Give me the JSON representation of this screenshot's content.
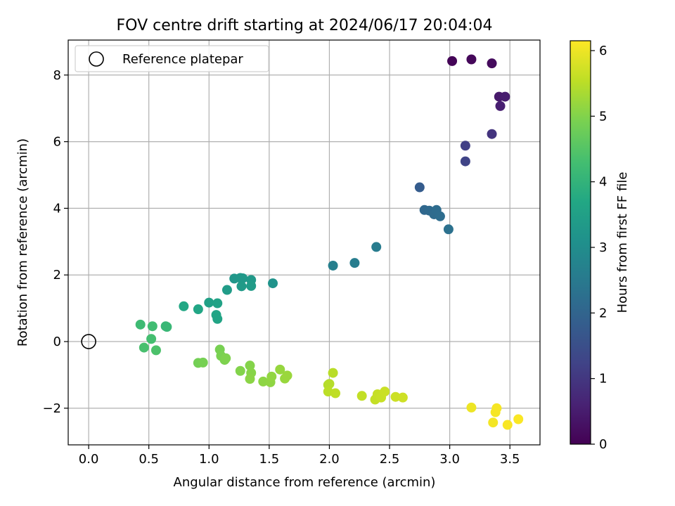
{
  "chart_data": {
    "type": "scatter",
    "title": "FOV centre drift starting at 2024/06/17 20:04:04",
    "xlabel": "Angular distance from reference (arcmin)",
    "ylabel": "Rotation from reference (arcmin)",
    "xlim": [
      -0.17,
      3.75
    ],
    "ylim": [
      -3.1,
      9.05
    ],
    "xticks": [
      0.0,
      0.5,
      1.0,
      1.5,
      2.0,
      2.5,
      3.0,
      3.5
    ],
    "xtick_labels": [
      "0.0",
      "0.5",
      "1.0",
      "1.5",
      "2.0",
      "2.5",
      "3.0",
      "3.5"
    ],
    "yticks": [
      -2,
      0,
      2,
      4,
      6,
      8
    ],
    "ytick_labels": [
      "−2",
      "0",
      "2",
      "4",
      "6",
      "8"
    ],
    "grid": true,
    "legend": {
      "placement": "upper-left",
      "entries": [
        {
          "label": "Reference platepar",
          "marker": "open-circle"
        }
      ]
    },
    "reference_point": {
      "x": 0.0,
      "y": 0.0
    },
    "colorbar": {
      "label": "Hours from first FF file",
      "colormap": "viridis",
      "range": [
        0,
        6.15
      ],
      "ticks": [
        0,
        1,
        2,
        3,
        4,
        5,
        6
      ],
      "tick_labels": [
        "0",
        "1",
        "2",
        "3",
        "4",
        "5",
        "6"
      ]
    },
    "points": [
      {
        "x": 3.02,
        "y": 8.42,
        "c": 0.05
      },
      {
        "x": 3.18,
        "y": 8.47,
        "c": 0.12
      },
      {
        "x": 3.35,
        "y": 8.35,
        "c": 0.18
      },
      {
        "x": 3.41,
        "y": 7.35,
        "c": 0.45
      },
      {
        "x": 3.46,
        "y": 7.35,
        "c": 0.5
      },
      {
        "x": 3.42,
        "y": 7.07,
        "c": 0.55
      },
      {
        "x": 3.35,
        "y": 6.23,
        "c": 0.95
      },
      {
        "x": 3.13,
        "y": 5.88,
        "c": 1.15
      },
      {
        "x": 3.13,
        "y": 5.41,
        "c": 1.25
      },
      {
        "x": 2.75,
        "y": 4.63,
        "c": 1.8
      },
      {
        "x": 2.79,
        "y": 3.95,
        "c": 2.05
      },
      {
        "x": 2.83,
        "y": 3.93,
        "c": 2.1
      },
      {
        "x": 2.87,
        "y": 3.82,
        "c": 2.15
      },
      {
        "x": 2.89,
        "y": 3.95,
        "c": 2.18
      },
      {
        "x": 2.92,
        "y": 3.76,
        "c": 2.2
      },
      {
        "x": 2.99,
        "y": 3.37,
        "c": 2.3
      },
      {
        "x": 2.39,
        "y": 2.84,
        "c": 2.55
      },
      {
        "x": 2.21,
        "y": 2.36,
        "c": 2.6
      },
      {
        "x": 2.03,
        "y": 2.28,
        "c": 2.65
      },
      {
        "x": 1.53,
        "y": 1.75,
        "c": 3.15
      },
      {
        "x": 1.21,
        "y": 1.89,
        "c": 3.25
      },
      {
        "x": 1.26,
        "y": 1.91,
        "c": 3.28
      },
      {
        "x": 1.28,
        "y": 1.9,
        "c": 3.3
      },
      {
        "x": 1.35,
        "y": 1.85,
        "c": 3.32
      },
      {
        "x": 1.27,
        "y": 1.66,
        "c": 3.35
      },
      {
        "x": 1.35,
        "y": 1.67,
        "c": 3.38
      },
      {
        "x": 1.15,
        "y": 1.55,
        "c": 3.4
      },
      {
        "x": 1.0,
        "y": 1.17,
        "c": 3.5
      },
      {
        "x": 1.07,
        "y": 1.15,
        "c": 3.55
      },
      {
        "x": 1.06,
        "y": 0.8,
        "c": 3.6
      },
      {
        "x": 1.07,
        "y": 0.68,
        "c": 3.62
      },
      {
        "x": 0.91,
        "y": 0.97,
        "c": 3.65
      },
      {
        "x": 0.79,
        "y": 1.06,
        "c": 3.68
      },
      {
        "x": 0.64,
        "y": 0.46,
        "c": 4.1
      },
      {
        "x": 0.65,
        "y": 0.44,
        "c": 4.12
      },
      {
        "x": 0.43,
        "y": 0.51,
        "c": 4.2
      },
      {
        "x": 0.53,
        "y": 0.46,
        "c": 4.25
      },
      {
        "x": 0.52,
        "y": 0.08,
        "c": 4.3
      },
      {
        "x": 0.46,
        "y": -0.18,
        "c": 4.35
      },
      {
        "x": 0.56,
        "y": -0.26,
        "c": 4.4
      },
      {
        "x": 0.91,
        "y": -0.64,
        "c": 4.85
      },
      {
        "x": 0.95,
        "y": -0.63,
        "c": 4.88
      },
      {
        "x": 1.09,
        "y": -0.24,
        "c": 4.9
      },
      {
        "x": 1.1,
        "y": -0.43,
        "c": 4.92
      },
      {
        "x": 1.13,
        "y": -0.55,
        "c": 4.95
      },
      {
        "x": 1.14,
        "y": -0.5,
        "c": 4.97
      },
      {
        "x": 1.26,
        "y": -0.88,
        "c": 5.0
      },
      {
        "x": 1.34,
        "y": -0.72,
        "c": 5.02
      },
      {
        "x": 1.35,
        "y": -0.94,
        "c": 5.05
      },
      {
        "x": 1.34,
        "y": -1.12,
        "c": 5.08
      },
      {
        "x": 1.45,
        "y": -1.2,
        "c": 5.1
      },
      {
        "x": 1.51,
        "y": -1.22,
        "c": 5.12
      },
      {
        "x": 1.52,
        "y": -1.05,
        "c": 5.15
      },
      {
        "x": 1.59,
        "y": -0.84,
        "c": 5.18
      },
      {
        "x": 1.63,
        "y": -1.11,
        "c": 5.2
      },
      {
        "x": 1.65,
        "y": -1.02,
        "c": 5.22
      },
      {
        "x": 1.99,
        "y": -1.3,
        "c": 5.45
      },
      {
        "x": 2.0,
        "y": -1.27,
        "c": 5.47
      },
      {
        "x": 2.03,
        "y": -0.94,
        "c": 5.5
      },
      {
        "x": 1.99,
        "y": -1.5,
        "c": 5.52
      },
      {
        "x": 2.05,
        "y": -1.55,
        "c": 5.55
      },
      {
        "x": 2.27,
        "y": -1.63,
        "c": 5.58
      },
      {
        "x": 2.38,
        "y": -1.74,
        "c": 5.6
      },
      {
        "x": 2.4,
        "y": -1.58,
        "c": 5.62
      },
      {
        "x": 2.43,
        "y": -1.68,
        "c": 5.64
      },
      {
        "x": 2.46,
        "y": -1.5,
        "c": 5.66
      },
      {
        "x": 2.55,
        "y": -1.66,
        "c": 5.68
      },
      {
        "x": 2.61,
        "y": -1.68,
        "c": 5.7
      },
      {
        "x": 3.18,
        "y": -1.98,
        "c": 6.0
      },
      {
        "x": 3.36,
        "y": -2.43,
        "c": 6.05
      },
      {
        "x": 3.38,
        "y": -2.12,
        "c": 6.07
      },
      {
        "x": 3.39,
        "y": -2.0,
        "c": 6.08
      },
      {
        "x": 3.48,
        "y": -2.5,
        "c": 6.1
      },
      {
        "x": 3.57,
        "y": -2.33,
        "c": 6.12
      }
    ]
  }
}
